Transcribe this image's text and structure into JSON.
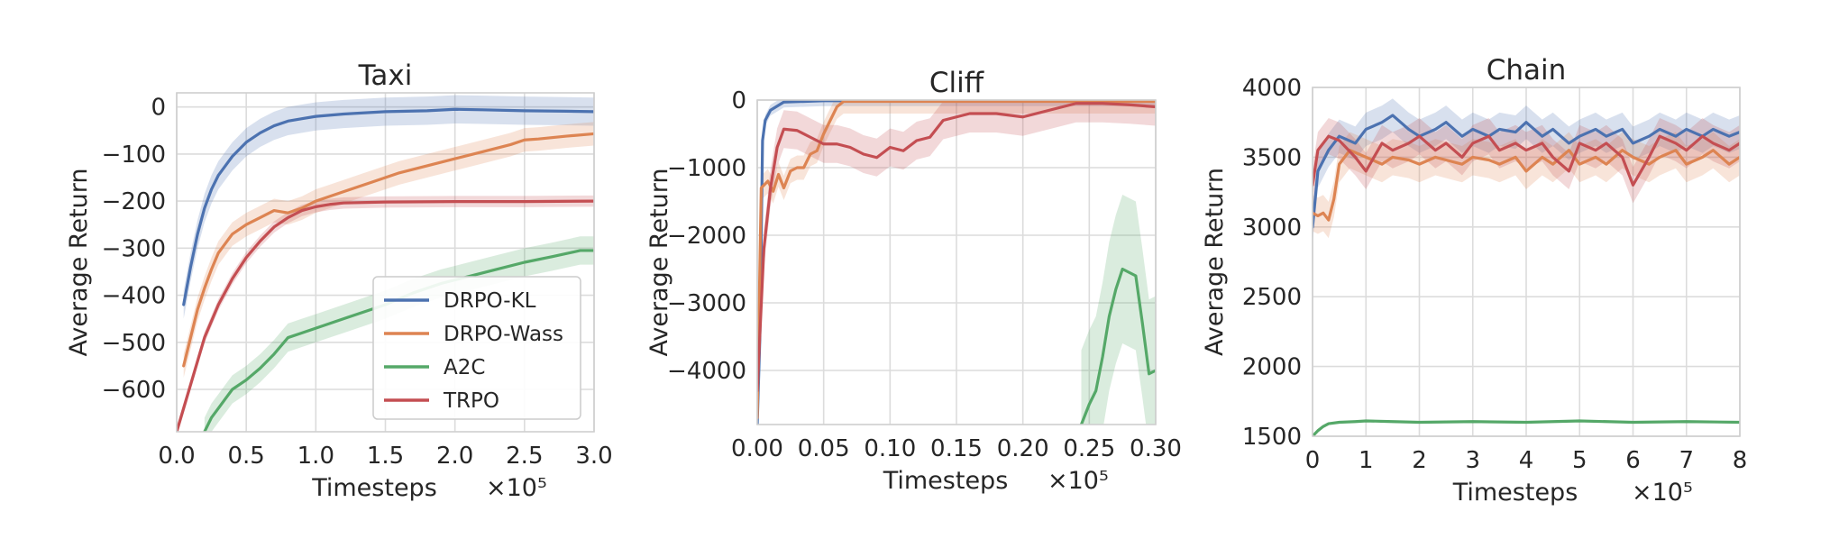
{
  "figure": {
    "legend": [
      {
        "name": "DRPO-KL",
        "color": "#4c72b0"
      },
      {
        "name": "DRPO-Wass",
        "color": "#dd8452"
      },
      {
        "name": "A2C",
        "color": "#55a868"
      },
      {
        "name": "TRPO",
        "color": "#c44e52"
      }
    ]
  },
  "chart_data": [
    {
      "type": "line",
      "title": "Taxi",
      "xlabel": "Timesteps",
      "ylabel": "Average Return",
      "x_multiplier_label": "×10⁵",
      "xlim": [
        0,
        3.0
      ],
      "ylim": [
        -690,
        30
      ],
      "xticks": [
        0,
        0.5,
        1.0,
        1.5,
        2.0,
        2.5,
        3.0
      ],
      "xtick_labels": [
        "0.0",
        "0.5",
        "1.0",
        "1.5",
        "2.0",
        "2.5",
        "3.0"
      ],
      "yticks": [
        0,
        -100,
        -200,
        -300,
        -400,
        -500,
        -600
      ],
      "ytick_labels": [
        "0",
        "−100",
        "−200",
        "−300",
        "−400",
        "−500",
        "−600"
      ],
      "grid": true,
      "legend_position": "lower-right",
      "series": [
        {
          "name": "DRPO-KL",
          "color": "#4c72b0",
          "x": [
            0.05,
            0.1,
            0.15,
            0.2,
            0.25,
            0.3,
            0.4,
            0.5,
            0.6,
            0.7,
            0.8,
            0.9,
            1.0,
            1.2,
            1.5,
            1.8,
            2.0,
            2.2,
            2.5,
            2.8,
            3.0
          ],
          "y": [
            -420,
            -340,
            -270,
            -215,
            -175,
            -145,
            -105,
            -75,
            -55,
            -40,
            -30,
            -25,
            -20,
            -15,
            -10,
            -8,
            -5,
            -6,
            -8,
            -9,
            -10
          ],
          "band": 30
        },
        {
          "name": "DRPO-Wass",
          "color": "#dd8452",
          "x": [
            0.05,
            0.1,
            0.15,
            0.2,
            0.25,
            0.3,
            0.4,
            0.5,
            0.6,
            0.7,
            0.8,
            0.9,
            1.0,
            1.1,
            1.2,
            1.4,
            1.6,
            1.8,
            2.0,
            2.2,
            2.4,
            2.5,
            2.6,
            2.8,
            3.0
          ],
          "y": [
            -550,
            -490,
            -430,
            -385,
            -345,
            -310,
            -270,
            -250,
            -235,
            -220,
            -225,
            -215,
            -200,
            -190,
            -180,
            -160,
            -140,
            -125,
            -110,
            -95,
            -80,
            -70,
            -68,
            -62,
            -57
          ],
          "band": 25
        },
        {
          "name": "A2C",
          "color": "#55a868",
          "x": [
            0.2,
            0.25,
            0.3,
            0.35,
            0.4,
            0.5,
            0.6,
            0.7,
            0.8,
            0.9,
            1.0,
            1.1,
            1.2,
            1.4,
            1.5,
            1.7,
            1.9,
            2.1,
            2.3,
            2.5,
            2.7,
            2.9,
            3.0
          ],
          "y": [
            -690,
            -660,
            -640,
            -620,
            -600,
            -580,
            -555,
            -525,
            -490,
            -480,
            -470,
            -460,
            -450,
            -430,
            -420,
            -395,
            -375,
            -360,
            -345,
            -330,
            -318,
            -305,
            -305
          ],
          "band": 30
        },
        {
          "name": "TRPO",
          "color": "#c44e52",
          "x": [
            0.0,
            0.05,
            0.1,
            0.15,
            0.2,
            0.3,
            0.4,
            0.5,
            0.6,
            0.7,
            0.8,
            0.9,
            1.0,
            1.1,
            1.2,
            1.5,
            2.0,
            2.5,
            3.0
          ],
          "y": [
            -690,
            -640,
            -590,
            -540,
            -490,
            -420,
            -365,
            -320,
            -285,
            -255,
            -235,
            -220,
            -212,
            -207,
            -204,
            -202,
            -201,
            -201,
            -200
          ],
          "band": 12
        }
      ]
    },
    {
      "type": "line",
      "title": "Cliff",
      "xlabel": "Timesteps",
      "ylabel": "Average Return",
      "x_multiplier_label": "×10⁵",
      "xlim": [
        0,
        0.3
      ],
      "ylim": [
        -4800,
        0
      ],
      "xticks": [
        0,
        0.05,
        0.1,
        0.15,
        0.2,
        0.25,
        0.3
      ],
      "xtick_labels": [
        "0.00",
        "0.05",
        "0.10",
        "0.15",
        "0.20",
        "0.25",
        "0.30"
      ],
      "yticks": [
        0,
        -1000,
        -2000,
        -3000,
        -4000
      ],
      "ytick_labels": [
        "0",
        "−1000",
        "−2000",
        "−3000",
        "−4000"
      ],
      "grid": true,
      "series": [
        {
          "name": "DRPO-KL",
          "color": "#4c72b0",
          "x": [
            0.0,
            0.002,
            0.004,
            0.006,
            0.01,
            0.02,
            0.05,
            0.1,
            0.2,
            0.3
          ],
          "y": [
            -4800,
            -3500,
            -600,
            -300,
            -150,
            -30,
            -10,
            -10,
            -10,
            -10
          ],
          "band": 80
        },
        {
          "name": "DRPO-Wass",
          "color": "#dd8452",
          "x": [
            0.0,
            0.003,
            0.008,
            0.012,
            0.016,
            0.02,
            0.025,
            0.03,
            0.035,
            0.04,
            0.045,
            0.05,
            0.055,
            0.06,
            0.065,
            0.07,
            0.1,
            0.2,
            0.3
          ],
          "y": [
            -4700,
            -1300,
            -1200,
            -1350,
            -1100,
            -1300,
            -1050,
            -1000,
            -1000,
            -800,
            -750,
            -500,
            -300,
            -100,
            -20,
            -20,
            -20,
            -20,
            -20
          ],
          "band": 180
        },
        {
          "name": "A2C",
          "color": "#55a868",
          "x": [
            0.244,
            0.25,
            0.255,
            0.26,
            0.265,
            0.27,
            0.275,
            0.28,
            0.285,
            0.29,
            0.295,
            0.3
          ],
          "y": [
            -4800,
            -4500,
            -4300,
            -3800,
            -3200,
            -2800,
            -2500,
            -2550,
            -2600,
            -3300,
            -4050,
            -4000
          ],
          "band": 1100
        },
        {
          "name": "TRPO",
          "color": "#c44e52",
          "x": [
            0.0,
            0.005,
            0.01,
            0.015,
            0.02,
            0.03,
            0.04,
            0.05,
            0.06,
            0.07,
            0.08,
            0.09,
            0.1,
            0.11,
            0.12,
            0.13,
            0.14,
            0.15,
            0.16,
            0.18,
            0.2,
            0.22,
            0.24,
            0.26,
            0.28,
            0.3
          ],
          "y": [
            -4300,
            -2200,
            -1300,
            -700,
            -430,
            -450,
            -550,
            -650,
            -650,
            -700,
            -800,
            -850,
            -700,
            -750,
            -600,
            -550,
            -300,
            -250,
            -200,
            -200,
            -250,
            -150,
            -50,
            -50,
            -70,
            -100
          ],
          "band": 280
        }
      ]
    },
    {
      "type": "line",
      "title": "Chain",
      "xlabel": "Timesteps",
      "ylabel": "Average Return",
      "x_multiplier_label": "×10⁵",
      "xlim": [
        0,
        8
      ],
      "ylim": [
        1500,
        4000
      ],
      "xticks": [
        0,
        1,
        2,
        3,
        4,
        5,
        6,
        7,
        8
      ],
      "xtick_labels": [
        "0",
        "1",
        "2",
        "3",
        "4",
        "5",
        "6",
        "7",
        "8"
      ],
      "yticks": [
        1500,
        2000,
        2500,
        3000,
        3500,
        4000
      ],
      "ytick_labels": [
        "1500",
        "2000",
        "2500",
        "3000",
        "3500",
        "4000"
      ],
      "grid": true,
      "series": [
        {
          "name": "DRPO-KL",
          "color": "#4c72b0",
          "x": [
            0.0,
            0.1,
            0.3,
            0.5,
            0.8,
            1.0,
            1.3,
            1.5,
            1.8,
            2.0,
            2.3,
            2.5,
            2.8,
            3.0,
            3.3,
            3.5,
            3.8,
            4.0,
            4.3,
            4.5,
            4.8,
            5.0,
            5.3,
            5.5,
            5.8,
            6.0,
            6.3,
            6.5,
            6.8,
            7.0,
            7.3,
            7.5,
            7.8,
            8.0
          ],
          "y": [
            3000,
            3400,
            3550,
            3650,
            3600,
            3700,
            3750,
            3800,
            3700,
            3650,
            3700,
            3750,
            3650,
            3700,
            3650,
            3700,
            3680,
            3750,
            3650,
            3700,
            3600,
            3650,
            3700,
            3650,
            3700,
            3600,
            3650,
            3700,
            3650,
            3700,
            3650,
            3700,
            3650,
            3680
          ],
          "band": 120
        },
        {
          "name": "DRPO-Wass",
          "color": "#dd8452",
          "x": [
            0.0,
            0.1,
            0.2,
            0.3,
            0.4,
            0.5,
            0.7,
            1.0,
            1.3,
            1.5,
            1.8,
            2.0,
            2.3,
            2.5,
            2.8,
            3.0,
            3.3,
            3.5,
            3.8,
            4.0,
            4.3,
            4.5,
            4.8,
            5.0,
            5.3,
            5.5,
            5.8,
            6.0,
            6.3,
            6.5,
            6.8,
            7.0,
            7.3,
            7.5,
            7.8,
            8.0
          ],
          "y": [
            3100,
            3080,
            3100,
            3050,
            3200,
            3450,
            3550,
            3500,
            3450,
            3500,
            3480,
            3450,
            3500,
            3480,
            3450,
            3500,
            3480,
            3450,
            3500,
            3400,
            3500,
            3450,
            3550,
            3450,
            3500,
            3450,
            3550,
            3500,
            3450,
            3500,
            3550,
            3450,
            3500,
            3550,
            3450,
            3500
          ],
          "band": 130
        },
        {
          "name": "A2C",
          "color": "#55a868",
          "x": [
            0.0,
            0.1,
            0.2,
            0.3,
            0.5,
            0.8,
            1.0,
            1.5,
            2.0,
            3.0,
            4.0,
            5.0,
            6.0,
            7.0,
            8.0
          ],
          "y": [
            1500,
            1540,
            1570,
            1590,
            1600,
            1605,
            1610,
            1605,
            1600,
            1605,
            1600,
            1610,
            1600,
            1605,
            1600
          ],
          "band": 6
        },
        {
          "name": "TRPO",
          "color": "#c44e52",
          "x": [
            0.0,
            0.1,
            0.3,
            0.5,
            0.8,
            1.0,
            1.3,
            1.5,
            1.8,
            2.0,
            2.3,
            2.5,
            2.8,
            3.0,
            3.3,
            3.5,
            3.8,
            4.0,
            4.3,
            4.5,
            4.8,
            5.0,
            5.3,
            5.5,
            5.8,
            6.0,
            6.3,
            6.5,
            6.8,
            7.0,
            7.3,
            7.5,
            7.8,
            8.0
          ],
          "y": [
            3300,
            3550,
            3650,
            3620,
            3500,
            3400,
            3600,
            3550,
            3600,
            3650,
            3550,
            3600,
            3500,
            3600,
            3650,
            3550,
            3600,
            3550,
            3600,
            3500,
            3400,
            3600,
            3550,
            3600,
            3500,
            3300,
            3500,
            3650,
            3600,
            3550,
            3650,
            3600,
            3550,
            3600
          ],
          "band": 130
        }
      ]
    }
  ]
}
